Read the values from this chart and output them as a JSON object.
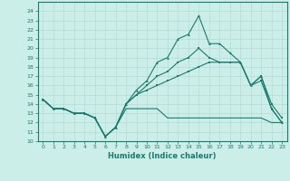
{
  "xlabel": "Humidex (Indice chaleur)",
  "bg_color": "#cceee8",
  "line_color": "#1a7a6e",
  "grid_color": "#b8ddd8",
  "xlim": [
    -0.5,
    23.5
  ],
  "ylim": [
    10,
    25
  ],
  "yticks": [
    10,
    11,
    12,
    13,
    14,
    15,
    16,
    17,
    18,
    19,
    20,
    21,
    22,
    23,
    24
  ],
  "xticks": [
    0,
    1,
    2,
    3,
    4,
    5,
    6,
    7,
    8,
    9,
    10,
    11,
    12,
    13,
    14,
    15,
    16,
    17,
    18,
    19,
    20,
    21,
    22,
    23
  ],
  "line1_x": [
    0,
    1,
    2,
    3,
    4,
    5,
    6,
    7,
    8,
    9,
    10,
    11,
    12,
    13,
    14,
    15,
    16,
    17,
    18,
    19,
    20,
    21,
    22,
    23
  ],
  "line1_y": [
    14.5,
    13.5,
    13.5,
    13.0,
    13.0,
    12.5,
    10.5,
    11.5,
    14.0,
    15.5,
    16.5,
    18.5,
    19.0,
    21.0,
    21.5,
    23.5,
    20.5,
    20.5,
    19.5,
    18.5,
    16.0,
    17.0,
    13.5,
    12.0
  ],
  "line2_x": [
    0,
    1,
    2,
    3,
    4,
    5,
    6,
    7,
    8,
    9,
    10,
    11,
    12,
    13,
    14,
    15,
    16,
    17,
    18,
    19,
    20,
    21,
    22,
    23
  ],
  "line2_y": [
    14.5,
    13.5,
    13.5,
    13.0,
    13.0,
    12.5,
    10.5,
    11.5,
    14.0,
    15.0,
    16.0,
    17.0,
    17.5,
    18.5,
    19.0,
    20.0,
    19.0,
    18.5,
    18.5,
    18.5,
    16.0,
    17.0,
    14.0,
    12.5
  ],
  "line3_x": [
    0,
    1,
    2,
    3,
    4,
    5,
    6,
    7,
    8,
    9,
    10,
    11,
    12,
    13,
    14,
    15,
    16,
    17,
    18,
    19,
    20,
    21,
    22,
    23
  ],
  "line3_y": [
    14.5,
    13.5,
    13.5,
    13.0,
    13.0,
    12.5,
    10.5,
    11.5,
    14.0,
    15.0,
    15.5,
    16.0,
    16.5,
    17.0,
    17.5,
    18.0,
    18.5,
    18.5,
    18.5,
    18.5,
    16.0,
    16.5,
    13.5,
    12.0
  ],
  "line4_x": [
    0,
    1,
    2,
    3,
    4,
    5,
    6,
    7,
    8,
    9,
    10,
    11,
    12,
    13,
    14,
    15,
    16,
    17,
    18,
    19,
    20,
    21,
    22,
    23
  ],
  "line4_y": [
    14.5,
    13.5,
    13.5,
    13.0,
    13.0,
    12.5,
    10.5,
    11.5,
    13.5,
    13.5,
    13.5,
    13.5,
    12.5,
    12.5,
    12.5,
    12.5,
    12.5,
    12.5,
    12.5,
    12.5,
    12.5,
    12.5,
    12.0,
    12.0
  ]
}
